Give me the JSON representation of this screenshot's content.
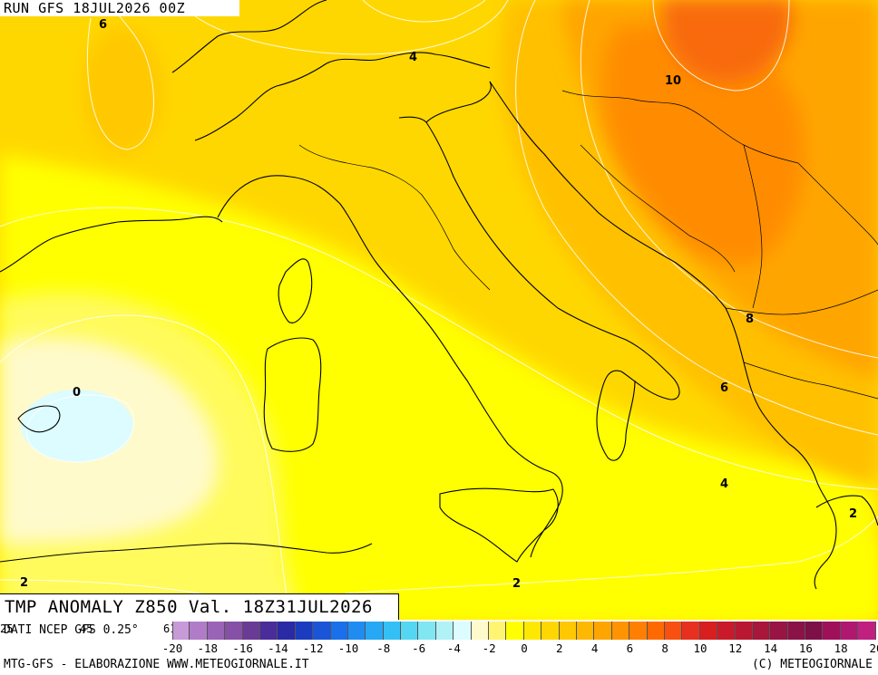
{
  "header": {
    "run_label": "RUN GFS 18JUL2026 00Z"
  },
  "map": {
    "title": "TMP ANOMALY Z850 Val. 18Z31JUL2026",
    "contour_labels": [
      {
        "text": "6",
        "id": "contour-6-nw"
      },
      {
        "text": "4",
        "id": "contour-4-alps"
      },
      {
        "text": "10",
        "id": "contour-10-balkans"
      },
      {
        "text": "8",
        "id": "contour-8-albania"
      },
      {
        "text": "6",
        "id": "contour-6-greece"
      },
      {
        "text": "4",
        "id": "contour-4-ionian"
      },
      {
        "text": "2",
        "id": "contour-2-greece"
      },
      {
        "text": "0",
        "id": "contour-0-baleari"
      },
      {
        "text": "2",
        "id": "contour-2-sw"
      },
      {
        "text": "2",
        "id": "contour-2-south"
      }
    ],
    "colors": {
      "cold_spot": "#dcfcff",
      "pale": "#fffacb",
      "yellow": "#ffff00",
      "gold": "#ffd700",
      "amber": "#ffc000",
      "orange": "#ffa500",
      "deep_orange": "#ff8c00",
      "red_orange": "#f86a10"
    }
  },
  "legend": {
    "source": "DATI NCEP GFS 0.25°",
    "edge_left": "25",
    "edge_mid": "45",
    "edge_right": "61",
    "tick_labels": [
      "-20",
      "-18",
      "-16",
      "-14",
      "-12",
      "-10",
      "-8",
      "-6",
      "-4",
      "-2",
      "0",
      "2",
      "4",
      "6",
      "8",
      "10",
      "12",
      "14",
      "16",
      "18",
      "20"
    ],
    "colors": [
      "#c89ad8",
      "#b07cc8",
      "#9a64b6",
      "#8550a6",
      "#6a3b96",
      "#4a2c9a",
      "#2a2aa6",
      "#1c3cc0",
      "#1a55d8",
      "#1a70ea",
      "#1f8cf2",
      "#27a8f5",
      "#35c0f5",
      "#55d6f2",
      "#80e6f2",
      "#b0f2f6",
      "#dcfcff",
      "#fffacb",
      "#fff570",
      "#ffff00",
      "#ffe800",
      "#ffd700",
      "#ffc800",
      "#ffb800",
      "#ffa500",
      "#ff9400",
      "#ff8000",
      "#ff6a00",
      "#f85010",
      "#e83020",
      "#d81e1e",
      "#c81a2a",
      "#b81832",
      "#a8163a",
      "#981442",
      "#8a1246",
      "#7e1048",
      "#a0105a",
      "#b01870",
      "#c02080"
    ]
  },
  "footer": {
    "left": "MTG-GFS - ELABORAZIONE WWW.METEOGIORNALE.IT",
    "right": "(C) METEOGIORNALE"
  }
}
